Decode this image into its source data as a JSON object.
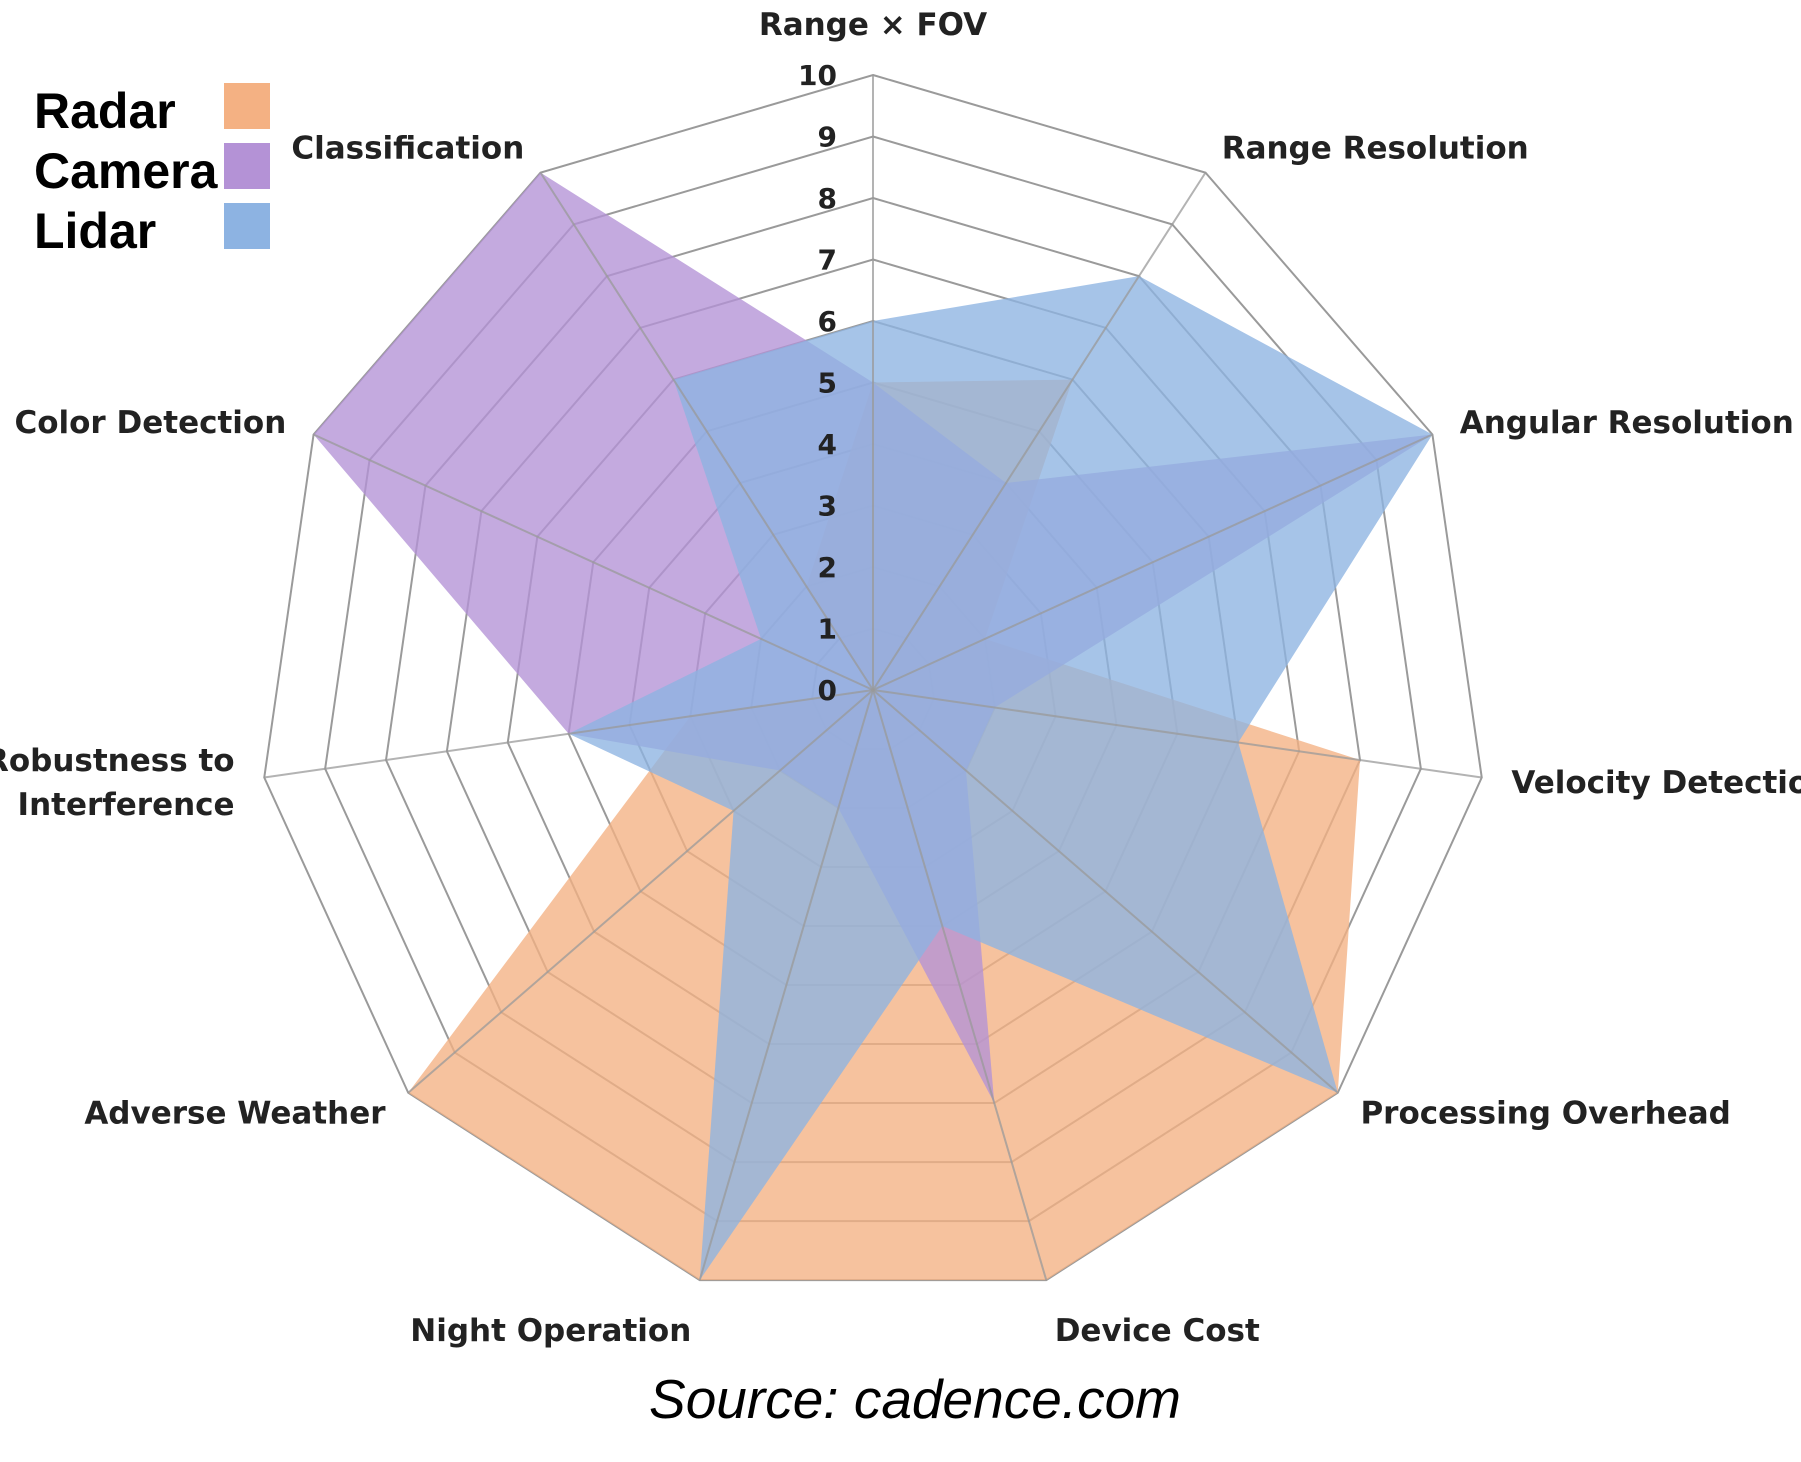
{
  "chart_data": {
    "type": "radar",
    "categories": [
      "Range × FOV",
      "Range Resolution",
      "Angular Resolution",
      "Velocity Detection",
      "Processing Overhead",
      "Device Cost",
      "Night Operation",
      "Adverse Weather",
      "Robustness to Interference",
      "Color Detection",
      "Classification"
    ],
    "category_lines": [
      [
        "Range × FOV"
      ],
      [
        "Range Resolution"
      ],
      [
        "Angular Resolution"
      ],
      [
        "Velocity Detection"
      ],
      [
        "Processing Overhead"
      ],
      [
        "Device Cost"
      ],
      [
        "Night Operation"
      ],
      [
        "Adverse Weather"
      ],
      [
        "Robustness to",
        "Interference"
      ],
      [
        "Color Detection"
      ],
      [
        "Classification"
      ]
    ],
    "ticks": [
      "0",
      "1",
      "2",
      "3",
      "4",
      "5",
      "6",
      "7",
      "8",
      "9",
      "10"
    ],
    "rlim": [
      0,
      10
    ],
    "series": [
      {
        "name": "Radar",
        "color": "#f4b183",
        "values": [
          5,
          6,
          2,
          8,
          10,
          10,
          10,
          10,
          3,
          0,
          2
        ]
      },
      {
        "name": "Camera",
        "color": "#b492d6",
        "values": [
          5,
          4,
          10,
          2,
          2,
          7,
          2,
          2,
          5,
          10,
          10
        ]
      },
      {
        "name": "Lidar",
        "color": "#8db3e2",
        "values": [
          6,
          8,
          10,
          6,
          10,
          4,
          10,
          3,
          5,
          2,
          6
        ]
      }
    ],
    "legend_position": "top-left",
    "grid": true
  },
  "source_text": "Source: cadence.com"
}
